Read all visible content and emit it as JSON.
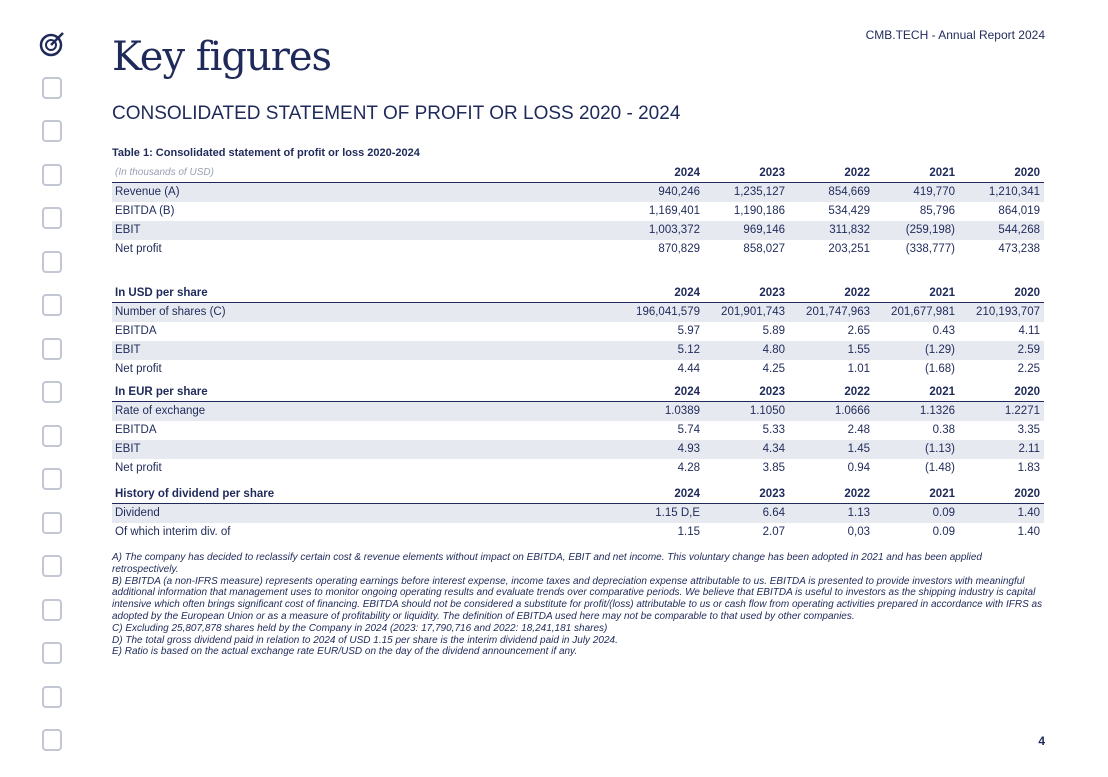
{
  "header": {
    "brand": "CMB.TECH - Annual Report 2024",
    "title": "Key figures",
    "subtitle": "CONSOLIDATED STATEMENT OF PROFIT OR LOSS 2020 - 2024"
  },
  "table": {
    "caption": "Table 1: Consolidated statement of profit or loss 2020-2024",
    "sections": [
      {
        "header": [
          "(In thousands of USD)",
          "2024",
          "2023",
          "2022",
          "2021",
          "2020"
        ],
        "rows": [
          [
            "Revenue (A)",
            "940,246",
            "1,235,127",
            "854,669",
            "419,770",
            "1,210,341"
          ],
          [
            "EBITDA (B)",
            "1,169,401",
            "1,190,186",
            "534,429",
            "85,796",
            "864,019"
          ],
          [
            "EBIT",
            "1,003,372",
            "969,146",
            "311,832",
            "(259,198)",
            "544,268"
          ],
          [
            "Net profit",
            "870,829",
            "858,027",
            "203,251",
            "(338,777)",
            "473,238"
          ]
        ]
      },
      {
        "header": [
          "In USD per share",
          "2024",
          "2023",
          "2022",
          "2021",
          "2020"
        ],
        "rows": [
          [
            "Number of shares (C)",
            "196,041,579",
            "201,901,743",
            "201,747,963",
            "201,677,981",
            "210,193,707"
          ],
          [
            "EBITDA",
            "5.97",
            "5.89",
            "2.65",
            "0.43",
            "4.11"
          ],
          [
            "EBIT",
            "5.12",
            "4.80",
            "1.55",
            "(1.29)",
            "2.59"
          ],
          [
            "Net profit",
            "4.44",
            "4.25",
            "1.01",
            "(1.68)",
            "2.25"
          ]
        ]
      },
      {
        "header": [
          "In EUR per share",
          "2024",
          "2023",
          "2022",
          "2021",
          "2020"
        ],
        "rows": [
          [
            "Rate of exchange",
            "1.0389",
            "1.1050",
            "1.0666",
            "1.1326",
            "1.2271"
          ],
          [
            "EBITDA",
            "5.74",
            "5.33",
            "2.48",
            "0.38",
            "3.35"
          ],
          [
            "EBIT",
            "4.93",
            "4.34",
            "1.45",
            "(1.13)",
            "2.11"
          ],
          [
            "Net profit",
            "4.28",
            "3.85",
            "0.94",
            "(1.48)",
            "1.83"
          ]
        ]
      },
      {
        "header": [
          "History of dividend per share",
          "2024",
          "2023",
          "2022",
          "2021",
          "2020"
        ],
        "rows": [
          [
            "Dividend",
            "1.15 D,E",
            "6.64",
            "1.13",
            "0.09",
            "1.40"
          ],
          [
            "Of which interim div. of",
            "1.15",
            "2.07",
            "0,03",
            "0.09",
            "1.40"
          ]
        ]
      }
    ]
  },
  "footnotes": [
    "A) The company has decided to reclassify certain cost & revenue elements without impact on EBITDA, EBIT and net income. This voluntary change has been adopted in 2021 and has been applied retrospectively.",
    "B) EBITDA (a non-IFRS measure) represents operating earnings before interest expense, income taxes and depreciation expense attributable to us. EBITDA is presented to provide investors with meaningful additional information that management uses to monitor ongoing operating results and evaluate trends over comparative periods. We believe that EBITDA is useful to investors as the shipping industry is capital intensive which often brings significant cost of financing. EBITDA should not be considered a substitute for profit/(loss) attributable to us or cash flow from operating activities prepared in accordance with IFRS as adopted by the European Union or as a measure of profitability or liquidity. The definition of EBITDA used here may not be comparable to that used by other companies.",
    "C) Excluding 25,807,878 shares held by the Company in 2024 (2023: 17,790,716 and 2022: 18,241,181 shares)",
    "D) The total gross dividend paid in relation to 2024 of USD 1.15  per share is the interim dividend paid in July 2024.",
    "E) Ratio is based on the actual exchange rate EUR/USD on the day of the dividend announcement if any."
  ],
  "page_number": "4"
}
